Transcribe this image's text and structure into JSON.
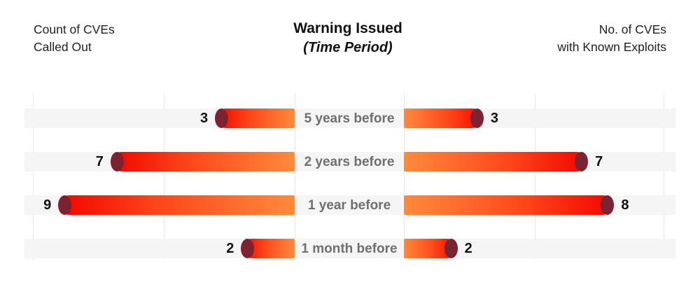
{
  "header": {
    "left_axis_title_line1": "Count of CVEs",
    "left_axis_title_line2": "Called Out",
    "title": "Warning Issued",
    "subtitle": "(Time Period)",
    "right_axis_title_line1": "No. of CVEs",
    "right_axis_title_line2": "with Known Exploits"
  },
  "chart_data": {
    "type": "bar",
    "variant": "bidirectional-tornado",
    "title": "Warning Issued",
    "subtitle": "(Time Period)",
    "categories": [
      "5 years before",
      "2 years before",
      "1 year before",
      "1 month before"
    ],
    "series": [
      {
        "name": "Count of CVEs Called Out",
        "side": "left",
        "values": [
          3,
          7,
          9,
          2
        ]
      },
      {
        "name": "No. of CVEs with Known Exploits",
        "side": "right",
        "values": [
          3,
          7,
          8,
          2
        ]
      }
    ],
    "xlim_each_side": [
      0,
      10
    ],
    "gridline_values": [
      0,
      5,
      10
    ],
    "grid": true,
    "legend_position": "none",
    "value_labels_shown": true,
    "colors": {
      "bar_gradient_outer": "#f20500",
      "bar_gradient_mid": "#ff4a1c",
      "bar_gradient_inner": "#ff8a3c",
      "bar_cap": "#7c2233",
      "row_strip": "#f5f5f5",
      "gridline": "#e8e8e8",
      "category_label": "#6f6f6f",
      "value_label": "#111111",
      "title": "#111111",
      "background": "#ffffff"
    }
  }
}
